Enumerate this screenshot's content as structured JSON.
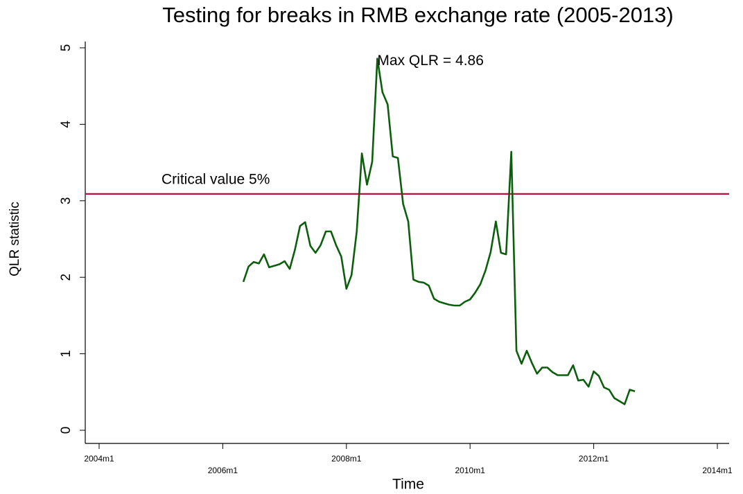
{
  "chart_data": {
    "type": "line",
    "title": "Testing for breaks in RMB exchange rate (2005-2013)",
    "xlabel": "Time",
    "ylabel": "QLR statistic",
    "x": [
      "2006m5",
      "2006m6",
      "2006m7",
      "2006m8",
      "2006m9",
      "2006m10",
      "2006m11",
      "2006m12",
      "2007m1",
      "2007m2",
      "2007m3",
      "2007m4",
      "2007m5",
      "2007m6",
      "2007m7",
      "2007m8",
      "2007m9",
      "2007m10",
      "2007m11",
      "2007m12",
      "2008m1",
      "2008m2",
      "2008m3",
      "2008m4",
      "2008m5",
      "2008m6",
      "2008m7",
      "2008m8",
      "2008m9",
      "2008m10",
      "2008m11",
      "2008m12",
      "2009m1",
      "2009m2",
      "2009m3",
      "2009m4",
      "2009m5",
      "2009m6",
      "2009m7",
      "2009m8",
      "2009m9",
      "2009m10",
      "2009m11",
      "2009m12",
      "2010m1",
      "2010m2",
      "2010m3",
      "2010m4",
      "2010m5",
      "2010m6",
      "2010m7",
      "2010m8",
      "2010m9",
      "2010m10",
      "2010m11",
      "2010m12",
      "2011m1",
      "2011m2",
      "2011m3",
      "2011m4",
      "2011m5",
      "2011m6",
      "2011m7",
      "2011m8",
      "2011m9",
      "2011m10",
      "2011m11",
      "2011m12",
      "2012m1",
      "2012m2",
      "2012m3",
      "2012m4",
      "2012m5",
      "2012m6",
      "2012m7",
      "2012m8",
      "2012m9"
    ],
    "values": [
      1.94,
      2.14,
      2.2,
      2.18,
      2.3,
      2.13,
      2.15,
      2.17,
      2.21,
      2.11,
      2.36,
      2.67,
      2.72,
      2.41,
      2.32,
      2.42,
      2.6,
      2.6,
      2.42,
      2.27,
      1.85,
      2.03,
      2.6,
      3.62,
      3.21,
      3.51,
      4.86,
      4.42,
      4.26,
      3.58,
      3.56,
      2.96,
      2.73,
      1.97,
      1.94,
      1.93,
      1.89,
      1.72,
      1.68,
      1.66,
      1.64,
      1.63,
      1.63,
      1.68,
      1.71,
      1.8,
      1.91,
      2.09,
      2.33,
      2.73,
      2.32,
      2.3,
      3.64,
      1.04,
      0.87,
      1.04,
      0.88,
      0.74,
      0.82,
      0.82,
      0.76,
      0.72,
      0.72,
      0.72,
      0.85,
      0.65,
      0.66,
      0.57,
      0.77,
      0.71,
      0.56,
      0.53,
      0.42,
      0.38,
      0.34,
      0.53,
      0.51
    ],
    "color": "#0b5e0b",
    "hline": {
      "value": 3.09,
      "label": "Critical value 5%",
      "color": "#b5123e"
    },
    "annotation": "Max QLR = 4.86",
    "xlim": [
      "2004m1",
      "2014m1"
    ],
    "xticks": [
      "2004m1",
      "2006m1",
      "2008m1",
      "2010m1",
      "2012m1",
      "2014m1"
    ],
    "ylim": [
      0,
      5
    ],
    "yticks": [
      0,
      1,
      2,
      3,
      4,
      5
    ],
    "grid": false
  }
}
